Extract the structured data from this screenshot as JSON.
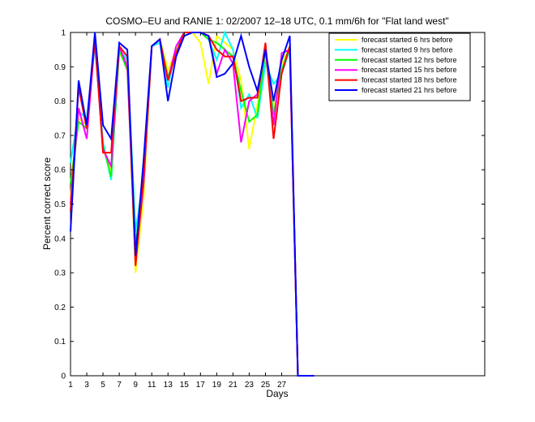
{
  "chart_data": {
    "type": "line",
    "title": "COSMO–EU and RANIE 1: 02/2007 12–18 UTC, 0.1 mm/6h for \"Flat land west\"",
    "xlabel": "Days",
    "ylabel": "Percent correct score",
    "xlim": [
      1,
      52
    ],
    "ylim": [
      0,
      1
    ],
    "x_ticks": [
      1,
      3,
      5,
      7,
      9,
      11,
      13,
      15,
      17,
      19,
      21,
      23,
      25,
      27
    ],
    "y_ticks": [
      0,
      0.1,
      0.2,
      0.3,
      0.4,
      0.5,
      0.6,
      0.7,
      0.8,
      0.9,
      1
    ],
    "y_tick_labels": [
      "0",
      "0.1",
      "0.2",
      "0.3",
      "0.4",
      "0.5",
      "0.6",
      "0.7",
      "0.8",
      "0.9",
      "1"
    ],
    "grid": false,
    "legend_position": "top-right",
    "x": [
      1,
      2,
      3,
      4,
      5,
      6,
      7,
      8,
      9,
      10,
      11,
      12,
      13,
      14,
      15,
      16,
      17,
      18,
      19,
      20,
      21,
      22,
      23,
      24,
      25,
      26,
      27,
      28,
      29,
      30,
      31
    ],
    "series": [
      {
        "name": "forecast started 6 hrs before",
        "color": "#ffff00",
        "values": [
          0.52,
          0.75,
          0.73,
          0.97,
          0.66,
          0.6,
          0.94,
          0.9,
          0.3,
          0.52,
          0.96,
          0.98,
          0.89,
          0.95,
          1.0,
          1.0,
          0.97,
          0.85,
          0.99,
          0.97,
          0.95,
          0.86,
          0.66,
          0.79,
          0.93,
          0.77,
          0.91,
          0.96,
          0.0,
          0.0,
          0.0
        ]
      },
      {
        "name": "forecast started 9 hrs before",
        "color": "#00ffff",
        "values": [
          0.62,
          0.77,
          0.75,
          0.96,
          0.68,
          0.57,
          0.95,
          0.92,
          0.42,
          0.58,
          0.96,
          0.97,
          0.84,
          0.96,
          0.99,
          1.0,
          1.0,
          0.98,
          0.92,
          1.0,
          0.95,
          0.78,
          0.82,
          0.75,
          0.91,
          0.85,
          0.88,
          0.95,
          0.0,
          0.0,
          0.0
        ]
      },
      {
        "name": "forecast started 12 hrs before",
        "color": "#00ff00",
        "values": [
          0.56,
          0.74,
          0.72,
          0.98,
          0.67,
          0.58,
          0.95,
          0.89,
          0.38,
          0.56,
          0.96,
          0.98,
          0.87,
          0.94,
          1.0,
          1.0,
          1.0,
          0.98,
          0.97,
          0.95,
          0.93,
          0.83,
          0.74,
          0.76,
          0.95,
          0.76,
          0.89,
          0.96,
          0.0,
          0.0,
          0.0
        ]
      },
      {
        "name": "forecast started 15 hrs before",
        "color": "#ff00ff",
        "values": [
          0.5,
          0.78,
          0.69,
          0.98,
          0.66,
          0.61,
          0.96,
          0.9,
          0.33,
          0.56,
          0.96,
          0.98,
          0.86,
          0.96,
          1.0,
          1.0,
          1.0,
          0.99,
          0.88,
          0.95,
          0.91,
          0.68,
          0.8,
          0.82,
          0.95,
          0.73,
          0.94,
          0.95,
          0.0,
          0.0,
          0.0
        ]
      },
      {
        "name": "forecast started 18 hrs before",
        "color": "#ff0000",
        "values": [
          0.48,
          0.84,
          0.72,
          0.98,
          0.65,
          0.65,
          0.96,
          0.93,
          0.32,
          0.58,
          0.96,
          0.98,
          0.86,
          0.94,
          1.0,
          1.0,
          1.0,
          0.99,
          0.95,
          0.93,
          0.93,
          0.8,
          0.81,
          0.81,
          0.97,
          0.69,
          0.88,
          0.96,
          0.0,
          0.0,
          0.0
        ]
      },
      {
        "name": "forecast started 21 hrs before",
        "color": "#0000ff",
        "values": [
          0.42,
          0.86,
          0.73,
          1.0,
          0.73,
          0.69,
          0.97,
          0.95,
          0.35,
          0.63,
          0.96,
          0.98,
          0.8,
          0.93,
          0.99,
          1.0,
          1.0,
          0.99,
          0.87,
          0.88,
          0.91,
          0.99,
          0.9,
          0.83,
          0.95,
          0.8,
          0.92,
          0.99,
          0.0,
          0.0,
          0.0
        ]
      }
    ]
  }
}
